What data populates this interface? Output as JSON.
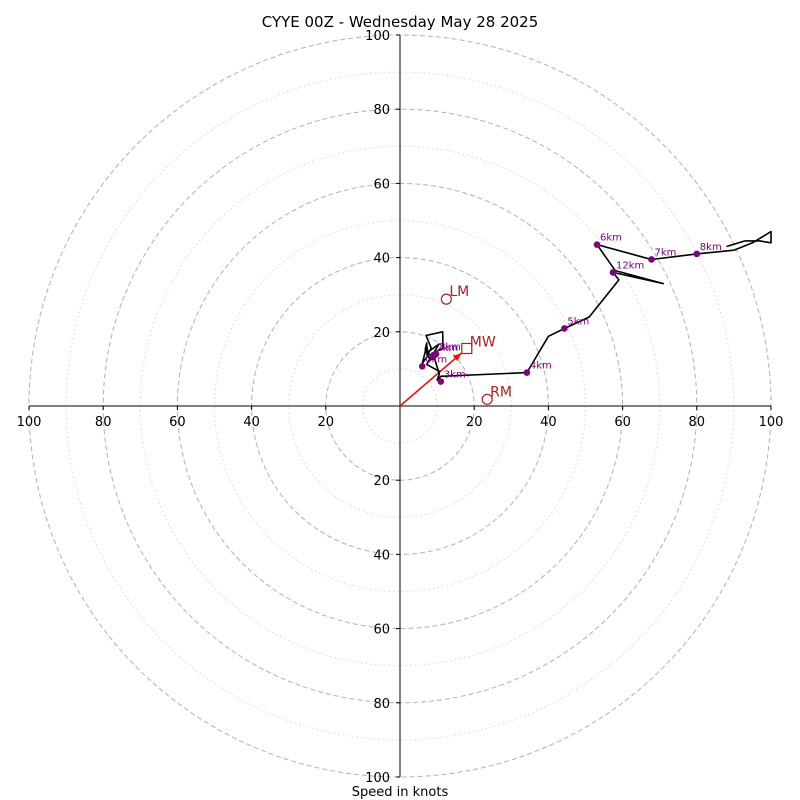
{
  "chart_data": {
    "type": "hodograph",
    "title": "CYYE 00Z - Wednesday May 28 2025",
    "xlabel": "Speed in knots",
    "axis_range": [
      -100,
      100
    ],
    "ring_major": [
      20,
      40,
      60,
      80,
      100
    ],
    "ring_minor": [
      10,
      30,
      50,
      70,
      90
    ],
    "x_tick_labels": [
      "100",
      "80",
      "60",
      "40",
      "20",
      "20",
      "40",
      "60",
      "80",
      "100"
    ],
    "x_tick_values": [
      -100,
      -80,
      -60,
      -40,
      -20,
      20,
      40,
      60,
      80,
      100
    ],
    "y_tick_labels_top": [
      "20",
      "40",
      "60",
      "80",
      "100"
    ],
    "y_tick_values_top": [
      20,
      40,
      60,
      80,
      100
    ],
    "y_tick_labels_bottom": [
      "20",
      "40",
      "60",
      "80",
      "100"
    ],
    "y_tick_values_bottom": [
      -20,
      -40,
      -60,
      -80,
      -100
    ],
    "trace": [
      [
        10.9,
        9.2
      ],
      [
        7.2,
        11.2
      ],
      [
        10.5,
        16.7
      ],
      [
        7.5,
        14.5
      ],
      [
        7.2,
        16.2
      ],
      [
        6.0,
        11.5
      ],
      [
        7.8,
        14.0
      ],
      [
        9.5,
        13.0
      ],
      [
        8.1,
        12.4
      ],
      [
        6.8,
        15.2
      ],
      [
        7.2,
        17.0
      ],
      [
        7.3,
        13.6
      ],
      [
        8.4,
        15.6
      ],
      [
        7.0,
        19.0
      ],
      [
        11.5,
        20.0
      ],
      [
        11.6,
        15.6
      ],
      [
        8.9,
        14.2
      ],
      [
        10.6,
        8.6
      ],
      [
        10.0,
        7.0
      ],
      [
        11.0,
        8.0
      ],
      [
        34.2,
        9.0
      ],
      [
        40.0,
        18.8
      ],
      [
        44.3,
        20.9
      ],
      [
        51.0,
        24.0
      ],
      [
        59.0,
        34.0
      ],
      [
        57.4,
        36.0
      ],
      [
        71.0,
        33.0
      ],
      [
        58.0,
        36.5
      ],
      [
        53.1,
        43.5
      ],
      [
        67.8,
        39.5
      ],
      [
        80.0,
        41.0
      ],
      [
        90.0,
        42.0
      ],
      [
        95.0,
        44.0
      ],
      [
        100.0,
        47.0
      ],
      [
        100.0,
        44.0
      ],
      [
        97.0,
        44.5
      ],
      [
        93.0,
        44.5
      ],
      [
        88.0,
        43.0
      ]
    ],
    "height_points": [
      {
        "label": "0km",
        "u": 6.0,
        "v": 10.7
      },
      {
        "label": "1km",
        "u": 9.7,
        "v": 14.0
      },
      {
        "label": "2km",
        "u": 9.0,
        "v": 13.7
      },
      {
        "label": "3km",
        "u": 11.0,
        "v": 6.6
      },
      {
        "label": "4km",
        "u": 34.2,
        "v": 9.0
      },
      {
        "label": "5km",
        "u": 44.3,
        "v": 20.9
      },
      {
        "label": "6km",
        "u": 53.1,
        "v": 43.5
      },
      {
        "label": "7km",
        "u": 67.8,
        "v": 39.5
      },
      {
        "label": "8km",
        "u": 80.0,
        "v": 41.0
      },
      {
        "label": "12km",
        "u": 57.4,
        "v": 36.0
      }
    ],
    "mean_wind_vector": {
      "label": "MW",
      "u": 18.0,
      "v": 15.5
    },
    "left_mover": {
      "label": "LM",
      "u": 12.5,
      "v": 28.8
    },
    "right_mover": {
      "label": "RM",
      "u": 23.5,
      "v": 1.8
    },
    "colors": {
      "trace": "#000000",
      "height_points": "#800080",
      "vectors": "#ee1111",
      "mover_markers": "#aa2222",
      "major_ring": "#b8b8b8",
      "minor_ring": "#d6d6d6"
    }
  }
}
